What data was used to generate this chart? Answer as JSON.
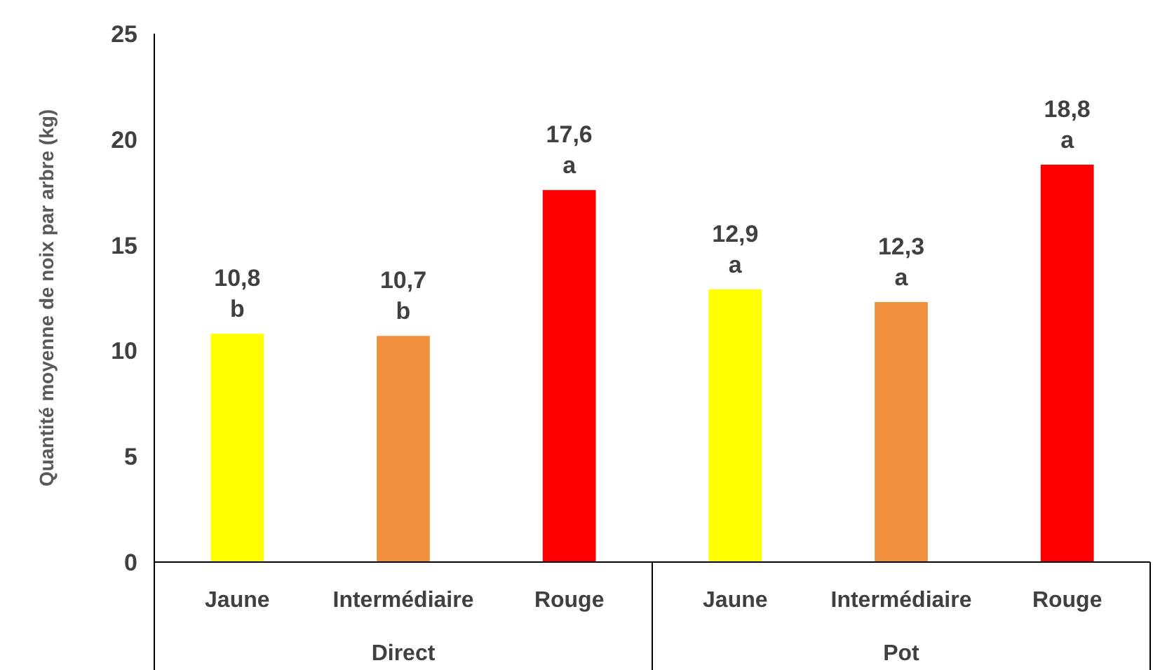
{
  "chart_data": {
    "type": "bar",
    "ylabel": "Quantité moyenne de noix par arbre (kg)",
    "categories": [
      "Jaune",
      "Intermédiaire",
      "Rouge",
      "Jaune",
      "Intermédiaire",
      "Rouge"
    ],
    "values": [
      10.8,
      10.7,
      17.6,
      12.9,
      12.3,
      18.8
    ],
    "colors": [
      "#ffff00",
      "#f0903c",
      "#ff0000",
      "#ffff00",
      "#f0903c",
      "#ff0000"
    ],
    "value_labels": [
      "10,8\nb",
      "10,7\nb",
      "17,6\na",
      "12,9\na",
      "12,3\na",
      "18,8\na"
    ],
    "annotations": [
      "Direct",
      "Pot"
    ],
    "ylim": [
      0,
      25
    ],
    "yticks": [
      0,
      5,
      10,
      15,
      20,
      25
    ],
    "grid": false
  }
}
